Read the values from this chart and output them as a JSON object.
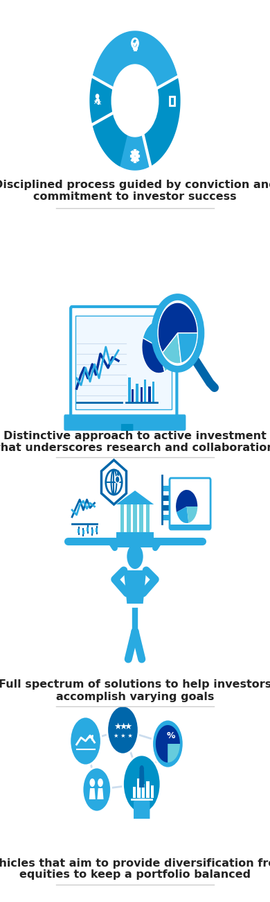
{
  "bg_color": "#ffffff",
  "blue_main": "#0099cc",
  "blue_dark": "#0066aa",
  "blue_light": "#66ccee",
  "blue_navy": "#003399",
  "text_color": "#222222",
  "divider_color": "#cccccc",
  "sections": [
    {
      "text1": "Disciplined process guided by conviction and",
      "text2": "commitment to investor success"
    },
    {
      "text1": "Distinctive approach to active investment",
      "text2": "that underscores research and collaboration"
    },
    {
      "text1": "Full spectrum of solutions to help investors",
      "text2": "accomplish varying goals"
    },
    {
      "text1": "Vehicles that aim to provide diversification from",
      "text2": "equities to keep a portfolio balanced"
    }
  ]
}
